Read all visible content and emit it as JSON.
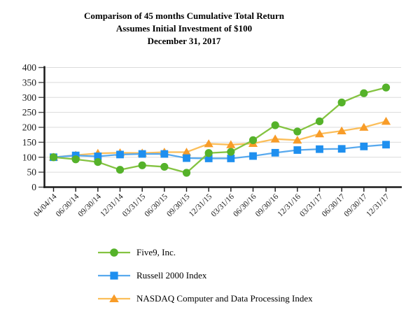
{
  "chart_data": {
    "type": "line",
    "title": "Comparison of 45 months Cumulative Total Return",
    "subtitle1": "Assumes Initial Investment of $100",
    "subtitle2": "December 31, 2017",
    "xlabel": "",
    "ylabel": "",
    "categories": [
      "04/04/14",
      "06/30/14",
      "09/30/14",
      "12/31/14",
      "03/31/15",
      "06/30/15",
      "09/30/15",
      "12/31/15",
      "03/31/16",
      "06/30/16",
      "09/30/16",
      "12/31/16",
      "03/31/17",
      "06/30/17",
      "09/30/17",
      "12/31/17"
    ],
    "series": [
      {
        "name": "Five9, Inc.",
        "marker": "circle",
        "line_color": "#84C341",
        "marker_color": "#55B22A",
        "values": [
          100,
          93,
          84,
          58,
          73,
          68,
          48,
          114,
          118,
          157,
          207,
          186,
          220,
          283,
          314,
          333
        ]
      },
      {
        "name": "Russell 2000 Index",
        "marker": "square",
        "line_color": "#58A9EE",
        "marker_color": "#1E8FEF",
        "values": [
          100,
          106,
          103,
          109,
          111,
          111,
          97,
          96,
          96,
          104,
          115,
          124,
          127,
          128,
          136,
          142
        ]
      },
      {
        "name": "NASDAQ Computer and Data Processing Index",
        "marker": "triangle",
        "line_color": "#FBBE5A",
        "marker_color": "#F89C28",
        "values": [
          100,
          107,
          113,
          115,
          114,
          117,
          117,
          145,
          142,
          146,
          161,
          157,
          178,
          188,
          200,
          220
        ]
      }
    ],
    "ylim": [
      0,
      400
    ],
    "yticks": [
      0,
      50,
      100,
      150,
      200,
      250,
      300,
      350,
      400
    ],
    "grid": true,
    "legend_position": "bottom-left"
  },
  "colors": {
    "grid": "#DBDBDB",
    "axis": "#1a1a1a",
    "tick": "#4d4d4d"
  }
}
